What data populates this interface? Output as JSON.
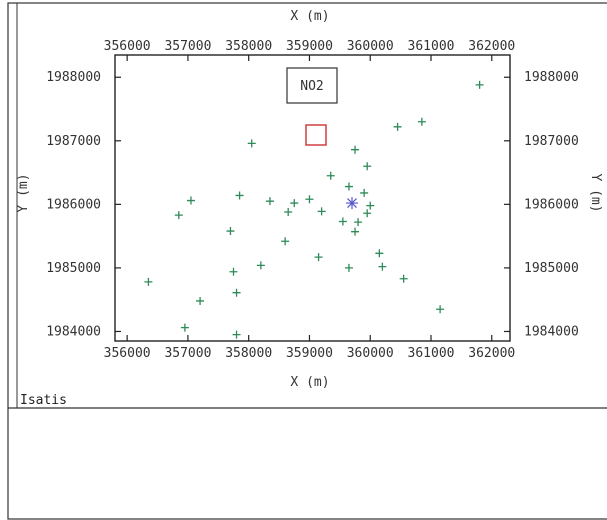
{
  "footer": {
    "app_name": "Isatis"
  },
  "chart_data": {
    "type": "scatter",
    "title": "",
    "xlabel": "X (m)",
    "ylabel": "Y (m)",
    "xlim": [
      355800,
      362300
    ],
    "ylim": [
      1983850,
      1988350
    ],
    "xticks": [
      356000,
      357000,
      358000,
      359000,
      360000,
      361000,
      362000
    ],
    "yticks": [
      1984000,
      1985000,
      1986000,
      1987000,
      1988000
    ],
    "grid": false,
    "legend": {
      "label": "NO2",
      "swatch_color": "#cc3333",
      "position": "top-center"
    },
    "colors": {
      "samples": "#2e8b57",
      "target": "#5555cc",
      "legend_box": "#333333"
    },
    "series": [
      {
        "marker": "plus",
        "points": [
          [
            361800,
            1987880
          ],
          [
            358050,
            1986960
          ],
          [
            360450,
            1987220
          ],
          [
            360850,
            1987300
          ],
          [
            359750,
            1986860
          ],
          [
            359950,
            1986600
          ],
          [
            359350,
            1986450
          ],
          [
            359650,
            1986280
          ],
          [
            359900,
            1986180
          ],
          [
            359000,
            1986080
          ],
          [
            358350,
            1986050
          ],
          [
            358750,
            1986020
          ],
          [
            357850,
            1986140
          ],
          [
            357050,
            1986060
          ],
          [
            356850,
            1985830
          ],
          [
            358650,
            1985880
          ],
          [
            359200,
            1985890
          ],
          [
            359950,
            1985860
          ],
          [
            360000,
            1985980
          ],
          [
            359550,
            1985730
          ],
          [
            359800,
            1985720
          ],
          [
            359750,
            1985570
          ],
          [
            357700,
            1985580
          ],
          [
            358600,
            1985420
          ],
          [
            360150,
            1985230
          ],
          [
            359150,
            1985170
          ],
          [
            358200,
            1985040
          ],
          [
            359650,
            1985000
          ],
          [
            360200,
            1985020
          ],
          [
            357750,
            1984940
          ],
          [
            360550,
            1984830
          ],
          [
            356350,
            1984780
          ],
          [
            357800,
            1984610
          ],
          [
            357200,
            1984480
          ],
          [
            361150,
            1984350
          ],
          [
            356950,
            1984060
          ],
          [
            357800,
            1983950
          ]
        ]
      },
      {
        "marker": "asterisk",
        "points": [
          [
            359700,
            1986020
          ]
        ]
      }
    ]
  }
}
